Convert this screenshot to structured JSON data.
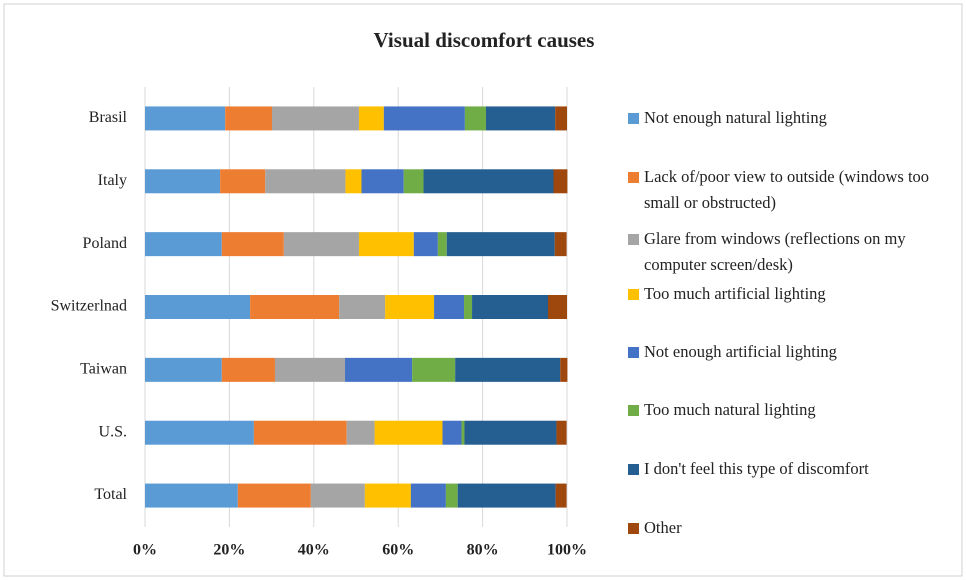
{
  "chart_data": {
    "type": "stacked_barh",
    "title": "Visual discomfort causes",
    "categories": [
      "Brasil",
      "Italy",
      "Poland",
      "Switzerlnad",
      "Taiwan",
      "U.S.",
      "Total"
    ],
    "series": [
      {
        "name": "Not enough natural lighting",
        "color": "#5b9bd5",
        "values": [
          19.0,
          17.8,
          18.2,
          24.9,
          18.2,
          25.8,
          22.0
        ]
      },
      {
        "name": "Lack of/poor view to outside (windows too small or obstructed)",
        "color": "#ed7d31",
        "values": [
          11.1,
          10.7,
          14.7,
          21.1,
          12.6,
          22.0,
          17.3
        ]
      },
      {
        "name": "Glare from windows (reflections on my computer screen/desk)",
        "color": "#a5a5a5",
        "values": [
          20.6,
          19.0,
          17.8,
          10.9,
          16.6,
          6.6,
          12.8
        ]
      },
      {
        "name": "Too much artificial lighting",
        "color": "#ffc000",
        "values": [
          5.9,
          3.8,
          13.0,
          11.6,
          0,
          16.1,
          10.9
        ]
      },
      {
        "name": "Not enough artificial lighting",
        "color": "#4472c4",
        "values": [
          19.2,
          10.0,
          5.7,
          7.1,
          15.9,
          4.5,
          8.3
        ]
      },
      {
        "name": "Too much natural lighting",
        "color": "#70ad47",
        "values": [
          5.0,
          4.7,
          2.1,
          1.9,
          10.2,
          0.7,
          2.8
        ]
      },
      {
        "name": "I don't feel this type of discomfort",
        "color": "#255e91",
        "values": [
          16.4,
          30.8,
          25.6,
          18.0,
          24.9,
          21.8,
          23.2
        ]
      },
      {
        "name": "Other",
        "color": "#9e480e",
        "values": [
          2.8,
          3.3,
          2.8,
          4.5,
          1.7,
          2.4,
          2.6
        ]
      }
    ],
    "xlim": [
      0,
      100
    ],
    "xticks": [
      {
        "value": 0,
        "label": "0%"
      },
      {
        "value": 20,
        "label": "20%"
      },
      {
        "value": 40,
        "label": "40%"
      },
      {
        "value": 60,
        "label": "60%"
      },
      {
        "value": 80,
        "label": "80%"
      },
      {
        "value": 100,
        "label": "100%"
      }
    ],
    "grid": true,
    "legend": "right"
  }
}
